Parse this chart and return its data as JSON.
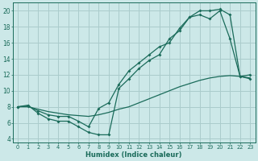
{
  "xlabel": "Humidex (Indice chaleur)",
  "ylabel": "",
  "bg_color": "#cce8e8",
  "grid_color": "#aacccc",
  "line_color": "#1a6b5a",
  "xlim": [
    -0.5,
    23.5
  ],
  "ylim": [
    3.5,
    21.0
  ],
  "xticks": [
    0,
    1,
    2,
    3,
    4,
    5,
    6,
    7,
    8,
    9,
    10,
    11,
    12,
    13,
    14,
    15,
    16,
    17,
    18,
    19,
    20,
    21,
    22,
    23
  ],
  "yticks": [
    4,
    6,
    8,
    10,
    12,
    14,
    16,
    18,
    20
  ],
  "line1_x": [
    0,
    1,
    2,
    3,
    4,
    5,
    6,
    7,
    8,
    9,
    10,
    11,
    12,
    13,
    14,
    15,
    16,
    17,
    18,
    19,
    20,
    21,
    22,
    23
  ],
  "line1_y": [
    8.0,
    8.2,
    7.2,
    6.5,
    6.2,
    6.2,
    5.5,
    4.8,
    4.5,
    4.5,
    10.3,
    11.5,
    12.8,
    13.8,
    14.5,
    16.5,
    17.5,
    19.2,
    20.0,
    20.0,
    20.2,
    19.5,
    11.8,
    11.5
  ],
  "line2_x": [
    0,
    1,
    2,
    3,
    4,
    5,
    6,
    7,
    8,
    9,
    10,
    11,
    12,
    13,
    14,
    15,
    16,
    17,
    18,
    19,
    20,
    21,
    22,
    23
  ],
  "line2_y": [
    8.0,
    8.0,
    7.7,
    7.4,
    7.2,
    7.0,
    6.9,
    6.8,
    7.0,
    7.3,
    7.7,
    8.0,
    8.5,
    9.0,
    9.5,
    10.0,
    10.5,
    10.9,
    11.3,
    11.6,
    11.8,
    11.9,
    11.8,
    11.6
  ],
  "line3_x": [
    0,
    1,
    2,
    3,
    4,
    5,
    6,
    7,
    8,
    9,
    10,
    11,
    12,
    13,
    14,
    15,
    16,
    17,
    18,
    19,
    20,
    21,
    22,
    23
  ],
  "line3_y": [
    8.0,
    8.1,
    7.5,
    7.0,
    6.8,
    6.8,
    6.2,
    5.5,
    7.8,
    8.5,
    10.8,
    12.5,
    13.5,
    14.5,
    15.5,
    16.0,
    17.8,
    19.2,
    19.5,
    19.0,
    20.0,
    16.5,
    11.8,
    12.0
  ]
}
